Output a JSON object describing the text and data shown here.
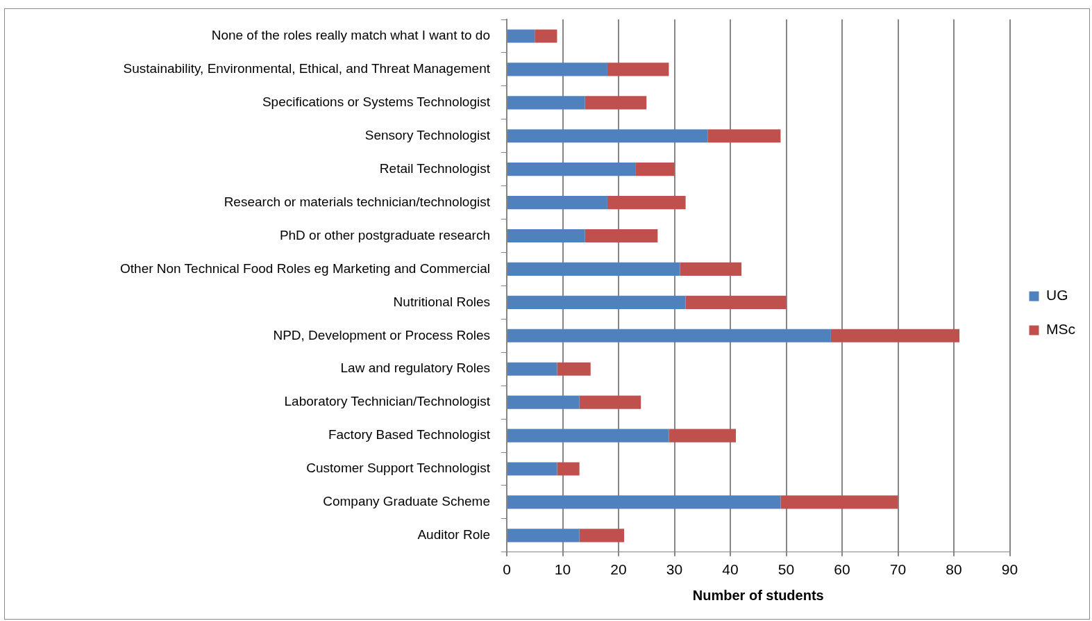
{
  "chart_data": {
    "type": "bar",
    "orientation": "horizontal",
    "stacked": true,
    "xlabel": "Number of students",
    "categories": [
      "None of the roles really match what I want to do",
      "Sustainability, Environmental, Ethical, and Threat Management",
      "Specifications or Systems Technologist",
      "Sensory Technologist",
      "Retail Technologist",
      "Research or materials technician/technologist",
      "PhD or other postgraduate research",
      "Other Non Technical Food Roles eg Marketing and Commercial",
      "Nutritional Roles",
      "NPD, Development or Process Roles",
      "Law and regulatory Roles",
      "Laboratory Technician/Technologist",
      "Factory Based Technologist",
      "Customer Support Technologist",
      "Company Graduate Scheme",
      "Auditor Role"
    ],
    "series": [
      {
        "name": "UG",
        "color": "#4f81bd",
        "values": [
          5,
          18,
          14,
          36,
          23,
          18,
          14,
          31,
          32,
          58,
          9,
          13,
          29,
          9,
          49,
          13
        ]
      },
      {
        "name": "MSc",
        "color": "#c0504d",
        "values": [
          4,
          11,
          11,
          13,
          7,
          14,
          13,
          11,
          18,
          23,
          6,
          11,
          12,
          4,
          21,
          8
        ]
      }
    ],
    "xlim": [
      0,
      90
    ],
    "xticks": [
      0,
      10,
      20,
      30,
      40,
      50,
      60,
      70,
      80,
      90
    ],
    "grid": "x",
    "legend": "right"
  }
}
